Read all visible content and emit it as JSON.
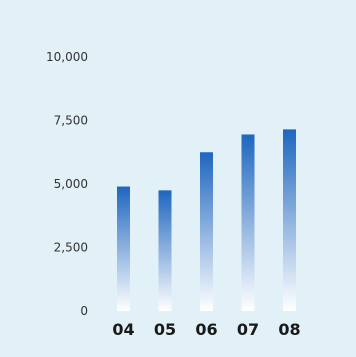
{
  "colors": {
    "panel_background": "#e1f1f7",
    "bar_top": "#1e66bf",
    "bar_bottom": "#ffffff"
  },
  "chart_data": {
    "type": "bar",
    "title": "",
    "xlabel": "",
    "ylabel": "",
    "categories": [
      "04",
      "05",
      "06",
      "07",
      "08"
    ],
    "values": [
      4900,
      4750,
      6250,
      6950,
      7150
    ],
    "ylim": [
      0,
      10000
    ],
    "yticks": [
      0,
      2500,
      5000,
      7500,
      10000
    ],
    "ytick_labels": [
      "0",
      "2,500",
      "5,000",
      "7,500",
      "10,000"
    ],
    "grid": false,
    "legend": "none",
    "bar_fill": "vertical gradient, dark blue at top fading to white at bottom"
  }
}
